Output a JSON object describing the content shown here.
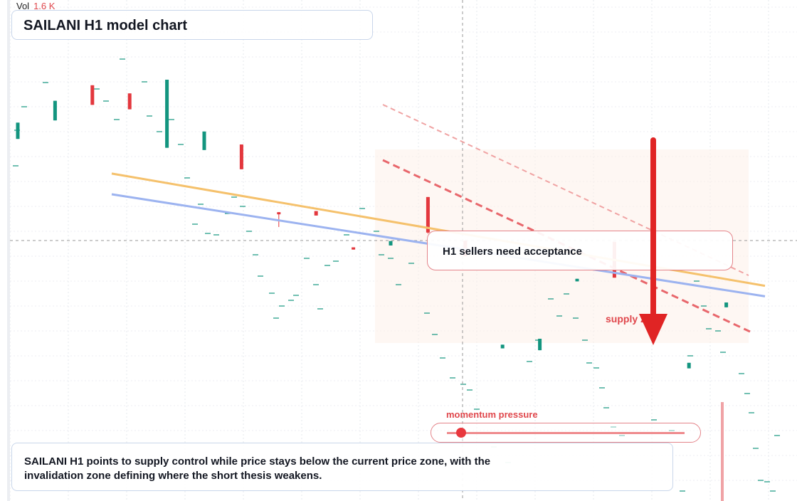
{
  "header": {
    "vol_label": "Vol",
    "vol_value": "1.6 K",
    "title": "SAILANI H1 model chart"
  },
  "annotations": {
    "callout": "H1 sellers need acceptance",
    "supply_label": "supply zone",
    "momentum_label": "momentum pressure",
    "momentum_level": 0.06,
    "summary": "SAILANI H1 points to supply control while price stays below the current price zone, with the invalidation zone defining where the short thesis weakens."
  },
  "colors": {
    "bull": "#13957f",
    "bear": "#e3373d",
    "trend_upper": "#f5c16c",
    "trend_lower": "#9cb3f0",
    "supply_line": "#e45a5f",
    "arrow": "#e02424"
  },
  "chart_data": {
    "type": "candlestick",
    "y_range": [
      0,
      100
    ],
    "candles": [
      {
        "o": 74,
        "c": 78.4,
        "h": 78.4,
        "l": 74
      },
      {
        "o": 79,
        "c": 84.3,
        "h": 84.3,
        "l": 79
      },
      {
        "o": 88.5,
        "c": 83.2,
        "h": 88.5,
        "l": 83.2
      },
      {
        "o": 86.3,
        "c": 82,
        "h": 86.3,
        "l": 82
      },
      {
        "o": 71.6,
        "c": 90,
        "h": 90,
        "l": 71.6
      },
      {
        "o": 71,
        "c": 76,
        "h": 76,
        "l": 71
      },
      {
        "o": 72.5,
        "c": 65.8,
        "h": 72.5,
        "l": 65.8
      },
      {
        "o": 54.2,
        "c": 53.9,
        "h": 54.2,
        "l": 50.2
      },
      {
        "o": 54.5,
        "c": 53.3,
        "h": 54.5,
        "l": 53.3
      },
      {
        "o": 44.7,
        "c": 44.1,
        "h": 44.7,
        "l": 44.1
      },
      {
        "o": 45.2,
        "c": 46.4,
        "h": 46.4,
        "l": 45.2
      },
      {
        "o": 58.3,
        "c": 48.7,
        "h": 58.3,
        "l": 48.4
      },
      {
        "o": 46.5,
        "c": 42.3,
        "h": 46.5,
        "l": 42.3
      },
      {
        "o": 17.4,
        "c": 18.4,
        "h": 18.4,
        "l": 17.4
      },
      {
        "o": 16.9,
        "c": 20,
        "h": 20,
        "l": 16.9
      },
      {
        "o": 35.5,
        "c": 36.2,
        "h": 36.2,
        "l": 35.5
      },
      {
        "o": 46.2,
        "c": 36.5,
        "h": 46.2,
        "l": 36.5
      },
      {
        "o": 23.8,
        "c": 23.2,
        "h": 23.8,
        "l": 23.2
      },
      {
        "o": 12,
        "c": 13.5,
        "h": 13.5,
        "l": 12
      },
      {
        "o": 28.5,
        "c": 29.8,
        "h": 29.8,
        "l": 28.5
      }
    ],
    "trendlines": [
      {
        "name": "",
        "from": [
          0,
          69.0
        ],
        "to": [
          19,
          36.1
        ]
      },
      {
        "name": "",
        "from": [
          0,
          63.0
        ],
        "to": [
          19,
          33.1
        ]
      }
    ]
  }
}
